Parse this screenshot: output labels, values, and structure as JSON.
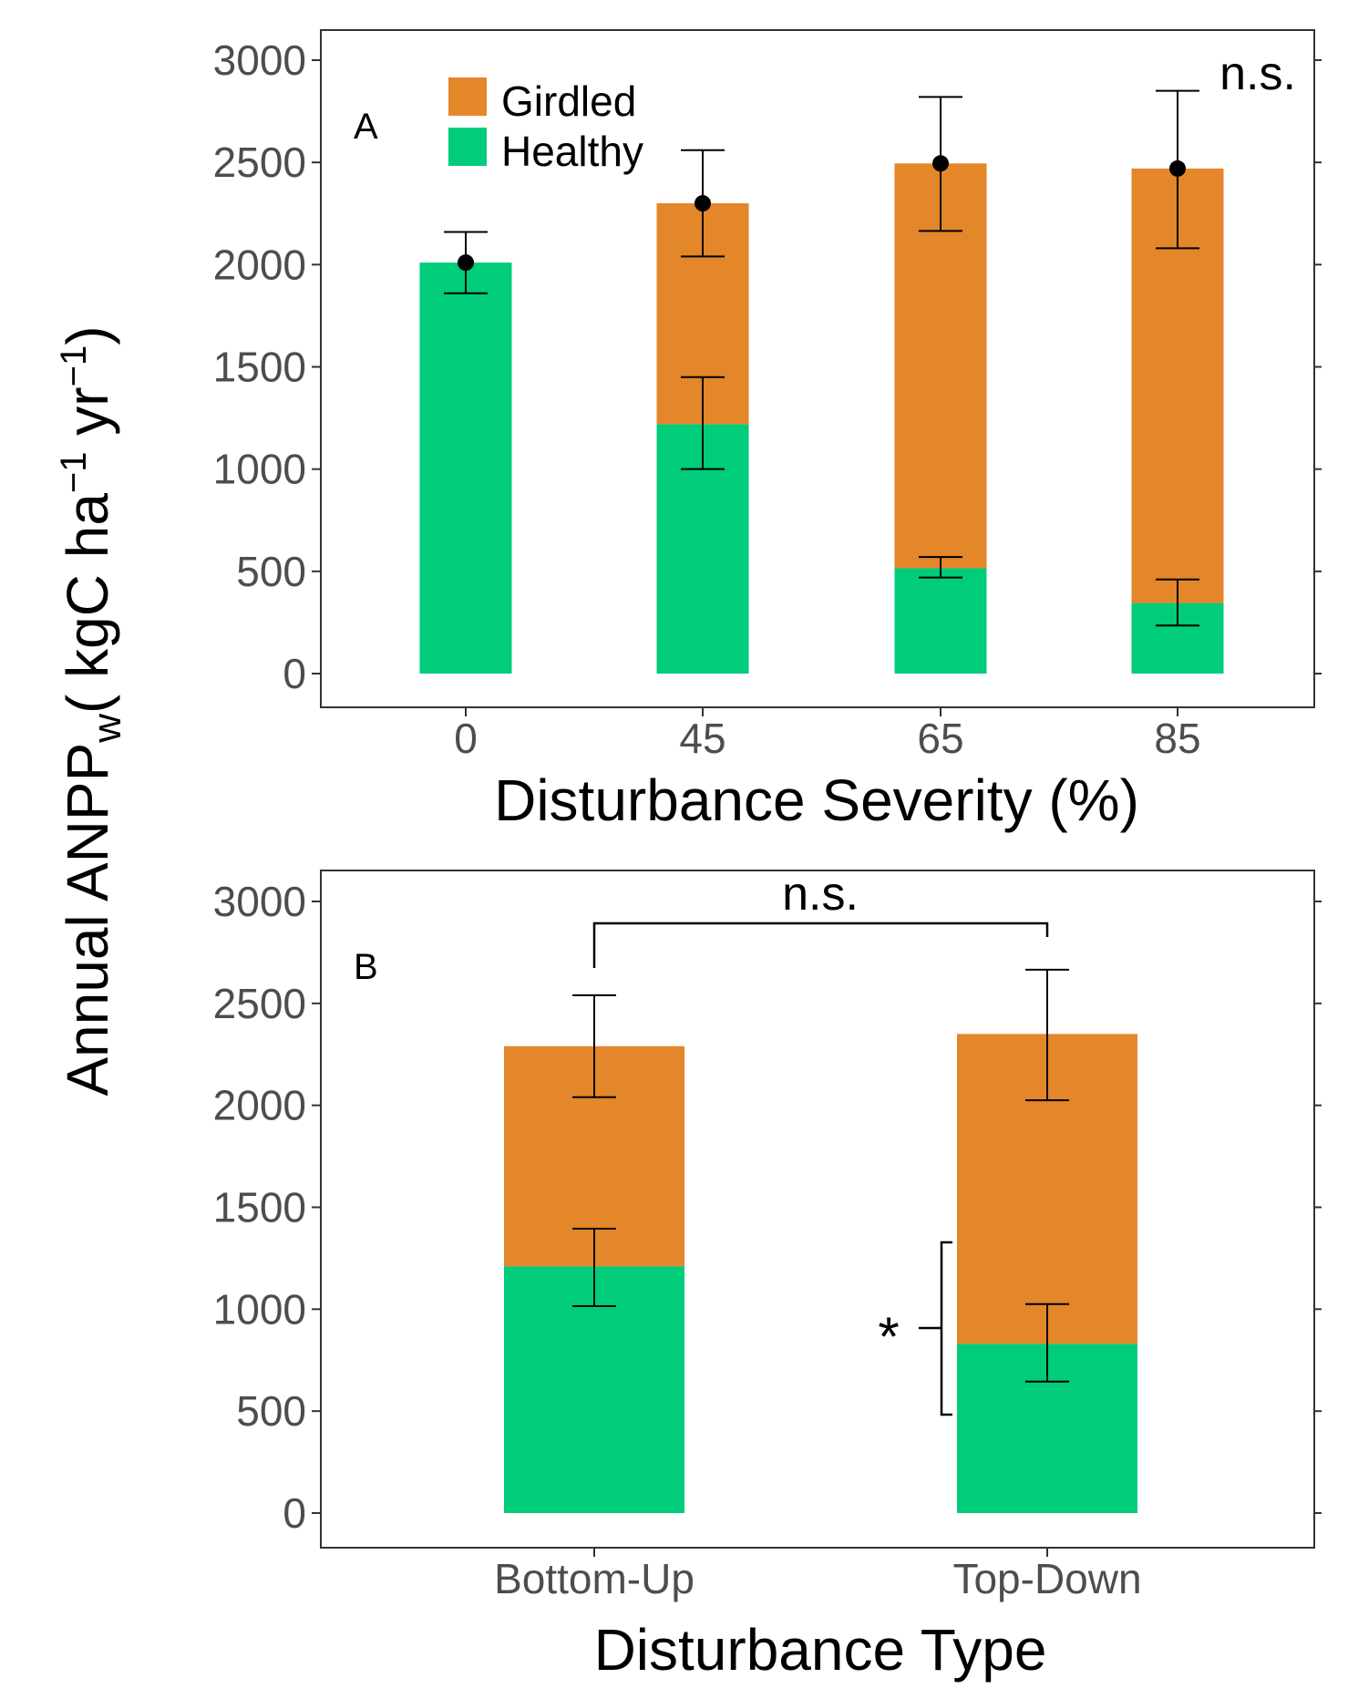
{
  "colors": {
    "girdled": "#e4862a",
    "healthy": "#00cc7a",
    "errorbar": "#000000",
    "point": "#000000"
  },
  "y_axis_title": "Annual ANPP",
  "y_axis_title_subscript": "w",
  "y_axis_title_units_open": "( kgC ha",
  "y_axis_title_units_mid": " yr",
  "y_axis_title_units_close": ")",
  "y_axis_title_exponent": "−1",
  "chart_data": [
    {
      "panel_label": "A",
      "type": "bar",
      "stacked": true,
      "xlabel": "Disturbance Severity (%)",
      "categories": [
        "0",
        "45",
        "65",
        "85"
      ],
      "ylim": [
        0,
        3000
      ],
      "yticks": [
        "0",
        "500",
        "1000",
        "1500",
        "2000",
        "2500",
        "3000"
      ],
      "series": [
        {
          "name": "Healthy",
          "color_key": "healthy",
          "values": [
            2010,
            1220,
            515,
            345
          ],
          "error_low": [
            2010,
            1000,
            470,
            235
          ],
          "error_high": [
            2010,
            1450,
            570,
            460
          ],
          "error_shown": [
            false,
            true,
            true,
            true
          ]
        },
        {
          "name": "Girdled",
          "color_key": "girdled",
          "values": [
            0,
            1080,
            1980,
            2125
          ]
        }
      ],
      "totals": {
        "values": [
          2010,
          2300,
          2495,
          2470
        ],
        "error_low": [
          1860,
          2040,
          2165,
          2080
        ],
        "error_high": [
          2160,
          2560,
          2820,
          2850
        ],
        "marker": "point"
      },
      "legend": {
        "placement": "top-left",
        "entries": [
          "Girdled",
          "Healthy"
        ]
      },
      "annotations": [
        {
          "text": "n.s.",
          "placement": "top-right"
        }
      ],
      "grid": false
    },
    {
      "panel_label": "B",
      "type": "bar",
      "stacked": true,
      "xlabel": "Disturbance Type",
      "categories": [
        "Bottom-Up",
        "Top-Down"
      ],
      "ylim": [
        0,
        3000
      ],
      "yticks": [
        "0",
        "500",
        "1000",
        "1500",
        "2000",
        "2500",
        "3000"
      ],
      "series": [
        {
          "name": "Healthy",
          "color_key": "healthy",
          "values": [
            1210,
            830
          ],
          "error_low": [
            1015,
            645
          ],
          "error_high": [
            1395,
            1025
          ],
          "error_shown": [
            true,
            true
          ]
        },
        {
          "name": "Girdled",
          "color_key": "girdled",
          "values": [
            1080,
            1520
          ]
        }
      ],
      "totals": {
        "values": [
          2290,
          2350
        ],
        "error_low": [
          2040,
          2025
        ],
        "error_high": [
          2540,
          2665
        ],
        "marker": "none"
      },
      "annotations": [
        {
          "text": "n.s.",
          "type": "bracket",
          "between": [
            "Bottom-Up",
            "Top-Down"
          ]
        },
        {
          "text": "*",
          "type": "brace",
          "category": "Top-Down",
          "y_range": [
            500,
            1380
          ]
        }
      ],
      "grid": false
    }
  ]
}
